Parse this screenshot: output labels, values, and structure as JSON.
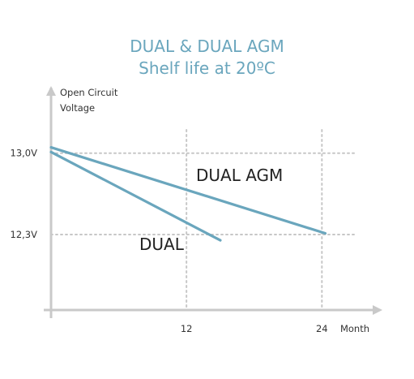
{
  "chart_data": {
    "type": "line",
    "title": "DUAL & DUAL AGM",
    "subtitle": "Shelf life at 20ºC",
    "ylabel": [
      "Open Circuit",
      "Voltage"
    ],
    "xlabel": "Month",
    "x_ticks": [
      {
        "value": 12,
        "label": "12"
      },
      {
        "value": 24,
        "label": "24"
      }
    ],
    "y_ticks": [
      {
        "value": 13.0,
        "label": "13,0V"
      },
      {
        "value": 12.3,
        "label": "12,3V"
      }
    ],
    "xlim": [
      0,
      28.5
    ],
    "ylim": [
      11.65,
      13.55
    ],
    "grid": true,
    "series": [
      {
        "name": "DUAL AGM",
        "points": [
          [
            0,
            13.05
          ],
          [
            24.3,
            12.31
          ]
        ]
      },
      {
        "name": "DUAL",
        "points": [
          [
            0,
            13.01
          ],
          [
            15.0,
            12.25
          ]
        ]
      }
    ],
    "colors": {
      "series": "#6aa6bd",
      "title": "#6aa6bd",
      "grid": "#c7c7c7",
      "axis": "#c9c9c9",
      "text": "#333333"
    }
  }
}
